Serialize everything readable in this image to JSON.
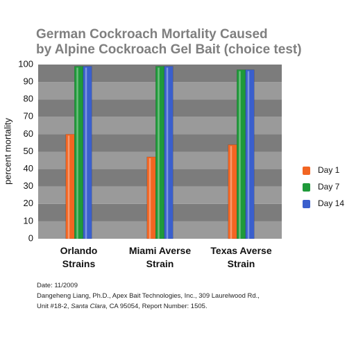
{
  "chart_data": {
    "type": "bar",
    "title": [
      "German Cockroach Mortality Caused",
      "by Alpine Cockroach Gel Bait (choice test)"
    ],
    "y_label": "percent mortality",
    "categories": [
      "Orlando Strains",
      "Miami Averse Strain",
      "Texas Averse Strain"
    ],
    "series": [
      {
        "name": "Day 1",
        "color": "#f26522",
        "values": [
          60,
          47,
          54
        ]
      },
      {
        "name": "Day 7",
        "color": "#1f9a3a",
        "values": [
          99,
          99,
          97
        ]
      },
      {
        "name": "Day 14",
        "color": "#3a5fcd",
        "values": [
          99,
          99,
          97
        ]
      }
    ],
    "ylim": [
      0,
      100
    ],
    "yticks": [
      0,
      10,
      20,
      30,
      40,
      50,
      60,
      70,
      80,
      90,
      100
    ],
    "grid": "bands",
    "band_colors": [
      "#9a9a9a",
      "#7c7c7c"
    ],
    "legend": "right",
    "notes": [
      "Date: 11/2009",
      "Dangeheng Liang, Ph.D., Apex Bait Technologies, Inc., 309 Laurelwood Rd.,",
      [
        "Unit #18-2, ",
        "Santa Clara",
        ", CA 95054, Report Number: 1505."
      ]
    ]
  }
}
